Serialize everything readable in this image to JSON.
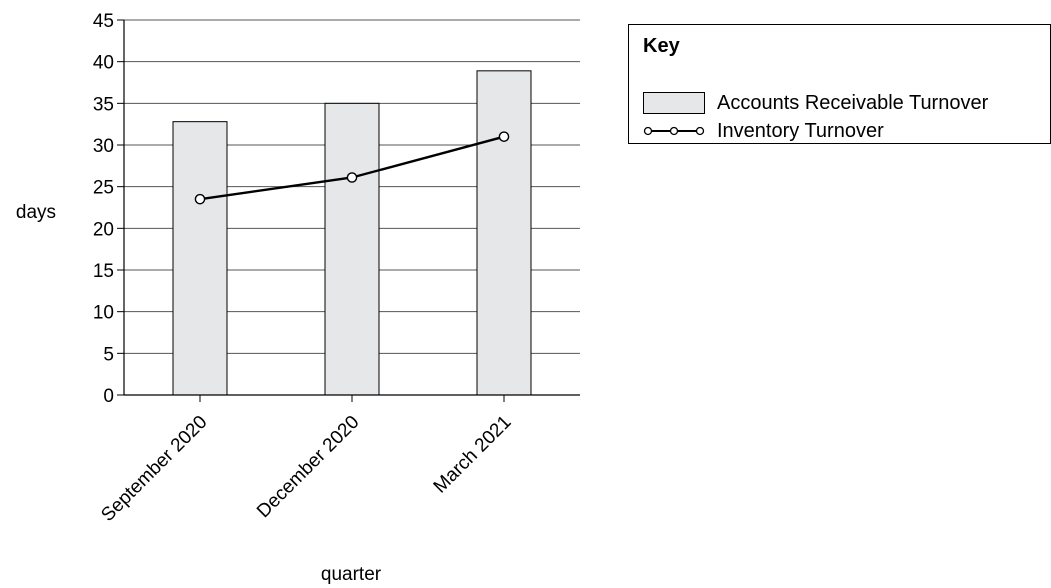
{
  "chart_data": {
    "type": "bar",
    "title": "",
    "xlabel": "quarter",
    "ylabel": "days",
    "ylim": [
      0,
      45
    ],
    "yticks": [
      0,
      5,
      10,
      15,
      20,
      25,
      30,
      35,
      40,
      45
    ],
    "grid": "horizontal",
    "categories": [
      "September 2020",
      "December 2020",
      "March 2021"
    ],
    "series": [
      {
        "name": "Accounts Receivable Turnover",
        "type": "bar",
        "color": "#e6e7e8",
        "values": [
          32.8,
          35.0,
          38.9
        ]
      },
      {
        "name": "Inventory Turnover",
        "type": "line",
        "marker": "open-circle",
        "color": "#000000",
        "values": [
          23.5,
          26.1,
          31.0
        ]
      }
    ],
    "legend": {
      "title": "Key",
      "placement": "right"
    }
  }
}
